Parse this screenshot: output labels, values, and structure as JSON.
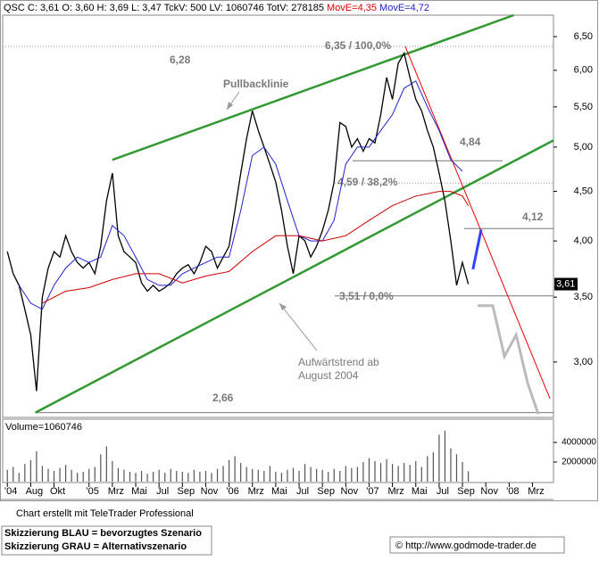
{
  "header": {
    "text": "QSC C: 3,61 O: 3,60 H: 3,69 L: 3,47 TckV: 500 LV: 1060746 TotV: 278185",
    "move_red": "MovE=4,35",
    "move_blue": "MovE=4,72"
  },
  "chart_data": [
    {
      "type": "line",
      "log_scale": true,
      "xlim": [
        4.6,
        51.8
      ],
      "xticks": [
        {
          "value": 5,
          "label": "'04"
        },
        {
          "value": 7,
          "label": "Aug"
        },
        {
          "value": 9,
          "label": "Okt"
        },
        {
          "value": 12,
          "label": "'05"
        },
        {
          "value": 14,
          "label": "Mrz"
        },
        {
          "value": 16,
          "label": "Mai"
        },
        {
          "value": 18,
          "label": "Jul"
        },
        {
          "value": 20,
          "label": "Sep"
        },
        {
          "value": 22,
          "label": "Nov"
        },
        {
          "value": 24,
          "label": "'06"
        },
        {
          "value": 26,
          "label": "Mrz"
        },
        {
          "value": 28,
          "label": "Mai"
        },
        {
          "value": 30,
          "label": "Jul"
        },
        {
          "value": 32,
          "label": "Sep"
        },
        {
          "value": 34,
          "label": "Nov"
        },
        {
          "value": 36,
          "label": "'07"
        },
        {
          "value": 38,
          "label": "Mrz"
        },
        {
          "value": 40,
          "label": "Mai"
        },
        {
          "value": 42,
          "label": "Jul"
        },
        {
          "value": 44,
          "label": "Sep"
        },
        {
          "value": 46,
          "label": "Nov"
        },
        {
          "value": 48,
          "label": "'08"
        },
        {
          "value": 50,
          "label": "Mrz"
        }
      ],
      "ylim": [
        2.63,
        6.84
      ],
      "yticks": [
        {
          "value": 3,
          "label": "3,00"
        },
        {
          "value": 3.5,
          "label": "3,50"
        },
        {
          "value": 4,
          "label": "4,00"
        },
        {
          "value": 4.5,
          "label": "4,50"
        },
        {
          "value": 5,
          "label": "5,00"
        },
        {
          "value": 5.5,
          "label": "5,50"
        },
        {
          "value": 6,
          "label": "6,00"
        },
        {
          "value": 6.5,
          "label": "6,50"
        }
      ],
      "series": [
        {
          "color": "#000000",
          "last_label": "3,61",
          "x": [
            5,
            5.5,
            6,
            6.5,
            7,
            7.5,
            8,
            8.5,
            9,
            9.5,
            10,
            10.5,
            11,
            11.5,
            12,
            12.5,
            13,
            13.5,
            14,
            14.5,
            15,
            15.5,
            16,
            16.5,
            17,
            17.5,
            18,
            18.5,
            19,
            19.5,
            20,
            20.5,
            21,
            21.5,
            22,
            22.5,
            23,
            23.5,
            24,
            24.5,
            25,
            25.5,
            26,
            26.5,
            27,
            27.5,
            28,
            28.5,
            29,
            29.5,
            30,
            30.5,
            31,
            31.5,
            32,
            32.5,
            33,
            33.5,
            34,
            34.5,
            35,
            35.5,
            36,
            36.5,
            37,
            37.5,
            38,
            38.5,
            39,
            39.5,
            40,
            40.5,
            41,
            41.5,
            42,
            42.5,
            43,
            43.5,
            44,
            44.5
          ],
          "values": [
            3.9,
            3.7,
            3.6,
            3.4,
            3.2,
            2.8,
            3.5,
            3.75,
            3.9,
            3.85,
            4.05,
            3.9,
            3.8,
            3.75,
            3.8,
            3.7,
            3.95,
            4.4,
            4.7,
            4.05,
            3.9,
            3.85,
            3.8,
            3.62,
            3.55,
            3.6,
            3.55,
            3.58,
            3.62,
            3.7,
            3.75,
            3.78,
            3.7,
            3.8,
            3.95,
            3.9,
            3.75,
            3.85,
            3.95,
            4.3,
            4.7,
            5.1,
            5.45,
            5.2,
            5.0,
            4.8,
            4.6,
            4.3,
            3.95,
            3.7,
            4.05,
            4.0,
            3.85,
            3.95,
            4.1,
            4.3,
            4.6,
            5.3,
            5.25,
            5.0,
            5.1,
            4.95,
            5.1,
            5.05,
            5.4,
            5.9,
            5.6,
            6.1,
            6.25,
            5.9,
            5.6,
            5.45,
            5.2,
            5.0,
            4.7,
            4.4,
            4.0,
            3.6,
            3.8,
            3.61
          ]
        },
        {
          "color": "#2222cc",
          "x": [
            6,
            7,
            8,
            9,
            10,
            11,
            12,
            13,
            14,
            15,
            16,
            17,
            18,
            19,
            20,
            21,
            22,
            23,
            24,
            25,
            26,
            27,
            28,
            29,
            30,
            31,
            32,
            33,
            34,
            35,
            36,
            37,
            38,
            39,
            40,
            41,
            42,
            43,
            44
          ],
          "values": [
            3.6,
            3.45,
            3.4,
            3.6,
            3.75,
            3.85,
            3.8,
            3.85,
            4.15,
            4.05,
            3.85,
            3.65,
            3.6,
            3.6,
            3.7,
            3.75,
            3.8,
            3.85,
            3.85,
            4.3,
            4.9,
            5.0,
            4.8,
            4.4,
            4.05,
            4.0,
            4.0,
            4.2,
            4.8,
            5.0,
            5.0,
            5.2,
            5.4,
            5.75,
            5.85,
            5.5,
            5.2,
            4.85,
            4.72
          ]
        },
        {
          "color": "#cc0000",
          "x": [
            8,
            9,
            10,
            12,
            14,
            16,
            18,
            20,
            22,
            24,
            26,
            28,
            30,
            32,
            34,
            36,
            38,
            40,
            42,
            43,
            44,
            44.5
          ],
          "values": [
            3.45,
            3.5,
            3.55,
            3.58,
            3.65,
            3.7,
            3.7,
            3.62,
            3.68,
            3.72,
            3.9,
            4.05,
            4.05,
            4.0,
            4.05,
            4.2,
            4.35,
            4.45,
            4.5,
            4.5,
            4.45,
            4.35
          ]
        },
        {
          "color": "#3344ff",
          "x": [
            44.9,
            45.6
          ],
          "values": [
            3.74,
            4.11
          ]
        },
        {
          "color": "#bbbbbb",
          "x": [
            45.3,
            46.6,
            47.6,
            48.6,
            49.6,
            50.5
          ],
          "values": [
            3.43,
            3.43,
            3.04,
            3.2,
            2.85,
            2.65
          ]
        }
      ],
      "lines": [
        {
          "color": "#339933",
          "x": [
            14,
            48.4
          ],
          "values": [
            4.85,
            6.84
          ]
        },
        {
          "color": "#339933",
          "x": [
            7.4,
            51.8
          ],
          "values": [
            2.66,
            5.08
          ]
        },
        {
          "color": "#ee0000",
          "x": [
            39.1,
            51.5
          ],
          "values": [
            6.35,
            2.75
          ]
        }
      ],
      "levels": [
        {
          "value": 6.35,
          "label": "6,35 / 100,0%"
        },
        {
          "value": 4.84,
          "label": "4,84"
        },
        {
          "value": 4.59,
          "label": "4,59 / 38,2%"
        },
        {
          "value": 4.12,
          "label": "4,12"
        },
        {
          "value": 3.51,
          "label": "3,51 / 0,0%"
        },
        {
          "value": 2.66,
          "label": "2,66"
        }
      ],
      "annotations": [
        "6,28",
        "Pullbacklinie",
        "Aufwärtstrend ab",
        "August 2004"
      ]
    },
    {
      "type": "bar",
      "label": "Volume=1060746",
      "color": "#555555",
      "ylim": [
        0,
        6100000
      ],
      "yticks": [
        2000000,
        4000000
      ],
      "x": [
        5,
        5.5,
        6,
        6.5,
        7,
        7.5,
        8,
        8.5,
        9,
        9.5,
        10,
        10.5,
        11,
        11.5,
        12,
        12.5,
        13,
        13.5,
        14,
        14.5,
        15,
        15.5,
        16,
        16.5,
        17,
        17.5,
        18,
        18.5,
        19,
        19.5,
        20,
        20.5,
        21,
        21.5,
        22,
        22.5,
        23,
        23.5,
        24,
        24.5,
        25,
        25.5,
        26,
        26.5,
        27,
        27.5,
        28,
        28.5,
        29,
        29.5,
        30,
        30.5,
        31,
        31.5,
        32,
        32.5,
        33,
        33.5,
        34,
        34.5,
        35,
        35.5,
        36,
        36.5,
        37,
        37.5,
        38,
        38.5,
        39,
        39.5,
        40,
        40.5,
        41,
        41.5,
        42,
        42.5,
        43,
        43.5,
        44,
        44.5
      ],
      "values": [
        1200000,
        1500000,
        900000,
        1800000,
        2200000,
        3100000,
        1600000,
        1300000,
        1100000,
        1400000,
        1700000,
        1200000,
        900000,
        1000000,
        1300000,
        1500000,
        2800000,
        3600000,
        2100000,
        1400000,
        1200000,
        1000000,
        900000,
        1100000,
        800000,
        1000000,
        1200000,
        900000,
        1300000,
        1100000,
        1000000,
        900000,
        1200000,
        1000000,
        1100000,
        900000,
        1300000,
        1600000,
        2200000,
        2600000,
        1900000,
        1500000,
        1300000,
        1200000,
        1100000,
        1600000,
        1000000,
        900000,
        1200000,
        1400000,
        1100000,
        1800000,
        1500000,
        1300000,
        1200000,
        1000000,
        1300000,
        1100000,
        1600000,
        1400000,
        1500000,
        2000000,
        2400000,
        2100000,
        1900000,
        2300000,
        1800000,
        1600000,
        1900000,
        1700000,
        2100000,
        1500000,
        2600000,
        3000000,
        4800000,
        5200000,
        3400000,
        2800000,
        2000000,
        1060746
      ]
    }
  ],
  "footer": {
    "credit": "Chart erstellt mit TeleTrader Professional",
    "notes": [
      "Skizzierung BLAU = bevorzugtes Szenario",
      "Skizzierung GRAU = Alternativszenario"
    ],
    "source": "© http://www.godmode-trader.de"
  }
}
